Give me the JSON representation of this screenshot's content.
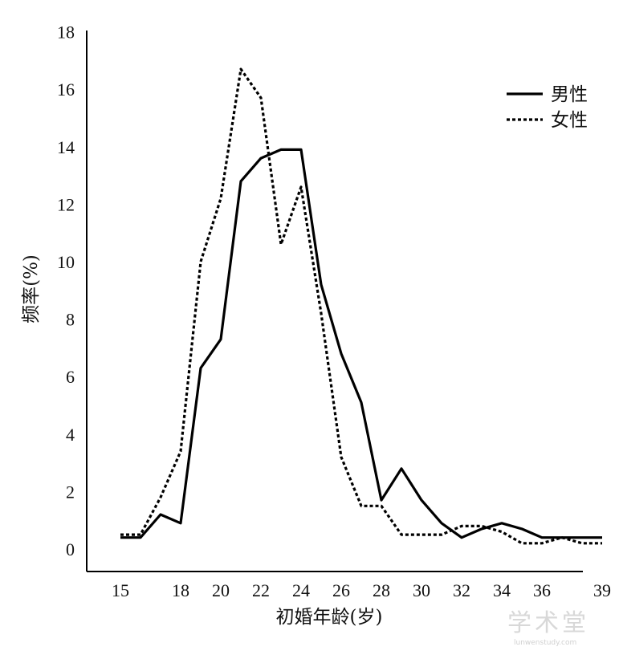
{
  "chart_data": {
    "type": "line",
    "title": "",
    "xlabel": "初婚年龄(岁)",
    "ylabel": "频率(%)",
    "xlim": [
      15,
      40
    ],
    "ylim": [
      0,
      18
    ],
    "x_ticks": [
      15,
      18,
      20,
      22,
      24,
      26,
      28,
      30,
      32,
      34,
      36,
      39
    ],
    "y_ticks": [
      0,
      2,
      4,
      6,
      8,
      10,
      12,
      14,
      16,
      18
    ],
    "grid": false,
    "legend_position": "top-right",
    "x": [
      15,
      16,
      17,
      18,
      19,
      20,
      21,
      22,
      23,
      24,
      25,
      26,
      27,
      28,
      29,
      30,
      31,
      32,
      33,
      34,
      35,
      36,
      37,
      38,
      39,
      40
    ],
    "series": [
      {
        "name": "男性",
        "style": "solid",
        "color": "#000000",
        "values": [
          0.4,
          0.4,
          1.2,
          0.9,
          6.3,
          7.3,
          12.8,
          13.6,
          13.9,
          13.9,
          9.2,
          6.8,
          5.1,
          1.7,
          2.8,
          1.7,
          0.9,
          0.4,
          0.7,
          0.9,
          0.7,
          0.4,
          0.4,
          0.4,
          0.4,
          null
        ]
      },
      {
        "name": "女性",
        "style": "dashed",
        "color": "#000000",
        "values": [
          0.5,
          0.5,
          1.8,
          3.4,
          10.0,
          12.2,
          16.7,
          15.7,
          10.6,
          12.6,
          8.2,
          3.2,
          1.5,
          1.5,
          0.5,
          0.5,
          0.5,
          0.8,
          0.8,
          0.6,
          0.2,
          0.2,
          0.4,
          0.2,
          0.2,
          null
        ]
      }
    ]
  },
  "watermark": {
    "text": "学术堂",
    "url": "lunwenstudy.com"
  }
}
